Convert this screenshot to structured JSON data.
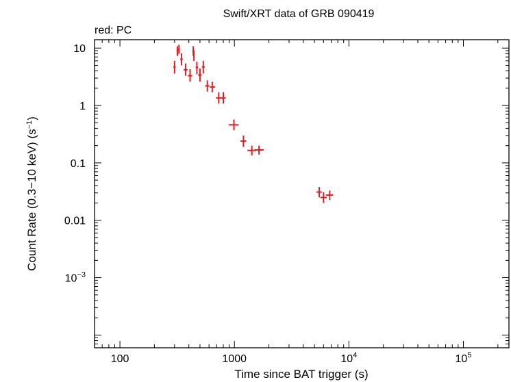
{
  "chart_data": {
    "type": "scatter",
    "title": "Swift/XRT data of GRB 090419",
    "subtitle": "red: PC",
    "xlabel": "Time since BAT trigger (s)",
    "ylabel_main": "Count Rate (0.3−10 keV) (s",
    "ylabel_sup": "−1",
    "ylabel_end": ")",
    "xscale": "log",
    "yscale": "log",
    "xlim": [
      60,
      250000
    ],
    "ylim": [
      6e-05,
      14
    ],
    "x_ticks": [
      {
        "value": 100,
        "base": "100",
        "sup": ""
      },
      {
        "value": 1000,
        "base": "1000",
        "sup": ""
      },
      {
        "value": 10000,
        "base": "10",
        "sup": "4"
      },
      {
        "value": 100000,
        "base": "10",
        "sup": "5"
      }
    ],
    "y_ticks": [
      {
        "value": 10,
        "base": "10",
        "sup": ""
      },
      {
        "value": 1,
        "base": "1",
        "sup": ""
      },
      {
        "value": 0.1,
        "base": "0.1",
        "sup": ""
      },
      {
        "value": 0.01,
        "base": "0.01",
        "sup": ""
      },
      {
        "value": 0.001,
        "base": "10",
        "sup": "−3"
      }
    ],
    "grid": false,
    "series": [
      {
        "color": "#e8191f",
        "points": [
          {
            "x": 300,
            "xlo": 293,
            "xhi": 307,
            "y": 4.7,
            "ylo": 3.6,
            "yhi": 6.0
          },
          {
            "x": 318,
            "xlo": 312,
            "xhi": 324,
            "y": 8.9,
            "ylo": 7.3,
            "yhi": 10.8
          },
          {
            "x": 328,
            "xlo": 322,
            "xhi": 334,
            "y": 9.6,
            "ylo": 7.9,
            "yhi": 11.4
          },
          {
            "x": 345,
            "xlo": 336,
            "xhi": 354,
            "y": 6.4,
            "ylo": 5.0,
            "yhi": 8.1
          },
          {
            "x": 375,
            "xlo": 360,
            "xhi": 390,
            "y": 4.2,
            "ylo": 3.3,
            "yhi": 5.4
          },
          {
            "x": 410,
            "xlo": 392,
            "xhi": 428,
            "y": 3.3,
            "ylo": 2.6,
            "yhi": 4.3
          },
          {
            "x": 437,
            "xlo": 430,
            "xhi": 444,
            "y": 8.9,
            "ylo": 7.3,
            "yhi": 10.8
          },
          {
            "x": 443,
            "xlo": 437,
            "xhi": 449,
            "y": 7.4,
            "ylo": 6.0,
            "yhi": 9.1
          },
          {
            "x": 470,
            "xlo": 458,
            "xhi": 482,
            "y": 4.6,
            "ylo": 3.5,
            "yhi": 5.8
          },
          {
            "x": 500,
            "xlo": 482,
            "xhi": 518,
            "y": 3.4,
            "ylo": 2.6,
            "yhi": 4.4
          },
          {
            "x": 535,
            "xlo": 520,
            "xhi": 550,
            "y": 4.7,
            "ylo": 3.6,
            "yhi": 6.0
          },
          {
            "x": 580,
            "xlo": 555,
            "xhi": 605,
            "y": 2.2,
            "ylo": 1.75,
            "yhi": 2.75
          },
          {
            "x": 640,
            "xlo": 610,
            "xhi": 680,
            "y": 2.1,
            "ylo": 1.7,
            "yhi": 2.6
          },
          {
            "x": 730,
            "xlo": 690,
            "xhi": 770,
            "y": 1.35,
            "ylo": 1.08,
            "yhi": 1.7
          },
          {
            "x": 800,
            "xlo": 760,
            "xhi": 840,
            "y": 1.35,
            "ylo": 1.08,
            "yhi": 1.7
          },
          {
            "x": 990,
            "xlo": 890,
            "xhi": 1090,
            "y": 0.46,
            "ylo": 0.37,
            "yhi": 0.57
          },
          {
            "x": 1200,
            "xlo": 1130,
            "xhi": 1270,
            "y": 0.24,
            "ylo": 0.19,
            "yhi": 0.3
          },
          {
            "x": 1420,
            "xlo": 1300,
            "xhi": 1540,
            "y": 0.165,
            "ylo": 0.135,
            "yhi": 0.2
          },
          {
            "x": 1640,
            "xlo": 1500,
            "xhi": 1800,
            "y": 0.168,
            "ylo": 0.14,
            "yhi": 0.2
          },
          {
            "x": 5500,
            "xlo": 5200,
            "xhi": 5800,
            "y": 0.031,
            "ylo": 0.025,
            "yhi": 0.038
          },
          {
            "x": 6000,
            "xlo": 5650,
            "xhi": 6400,
            "y": 0.025,
            "ylo": 0.02,
            "yhi": 0.031
          },
          {
            "x": 6800,
            "xlo": 6300,
            "xhi": 7300,
            "y": 0.0275,
            "ylo": 0.0225,
            "yhi": 0.033
          }
        ]
      }
    ]
  }
}
